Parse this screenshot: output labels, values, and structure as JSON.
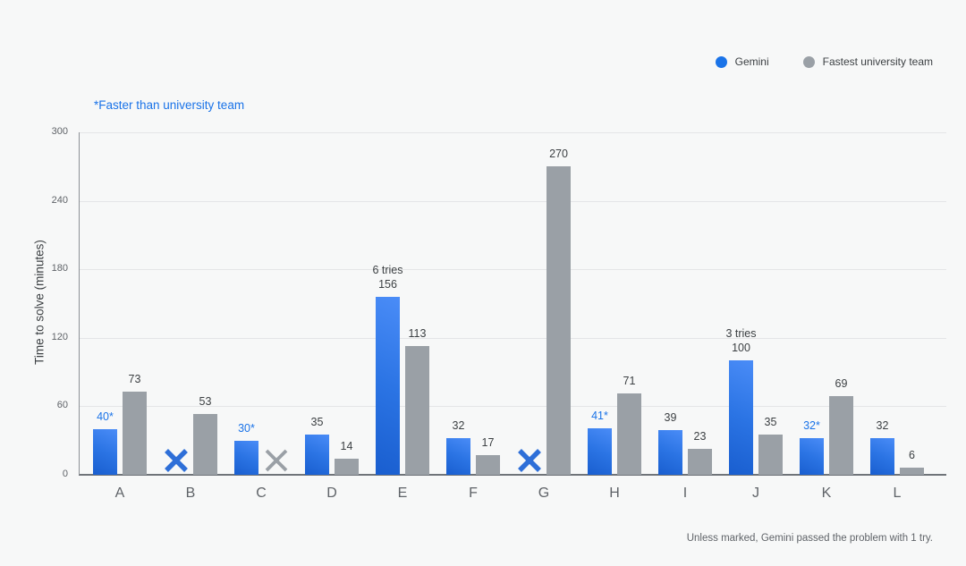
{
  "note": "*Faster than university team",
  "footnote": "Unless marked, Gemini passed the problem with 1 try.",
  "legend": {
    "items": [
      {
        "label": "Gemini",
        "color": "#1a73e8"
      },
      {
        "label": "Fastest university team",
        "color": "#9aa0a6"
      }
    ]
  },
  "chart_data": {
    "type": "bar",
    "title": "",
    "xlabel": "",
    "ylabel": "Time to solve (minutes)",
    "ylim": [
      0,
      300
    ],
    "yticks": [
      0,
      60,
      120,
      180,
      240,
      300
    ],
    "grid": true,
    "legend_position": "top-right",
    "categories": [
      "A",
      "B",
      "C",
      "D",
      "E",
      "F",
      "G",
      "H",
      "I",
      "J",
      "K",
      "L"
    ],
    "series": [
      {
        "name": "Gemini",
        "color": "#1a73e8",
        "values": [
          40,
          null,
          30,
          35,
          156,
          32,
          null,
          41,
          39,
          100,
          32,
          32
        ],
        "value_labels": [
          "40*",
          null,
          "30*",
          "35",
          "156",
          "32",
          null,
          "41*",
          "39",
          "100",
          "32*",
          "32"
        ],
        "failed": [
          false,
          true,
          false,
          false,
          false,
          false,
          true,
          false,
          false,
          false,
          false,
          false
        ],
        "failed_marker": "X",
        "annotations": [
          null,
          null,
          null,
          null,
          "6 tries",
          null,
          null,
          null,
          null,
          "3 tries",
          null,
          null
        ]
      },
      {
        "name": "Fastest university team",
        "color": "#9aa0a6",
        "values": [
          73,
          53,
          null,
          14,
          113,
          17,
          270,
          71,
          23,
          35,
          69,
          6
        ],
        "value_labels": [
          "73",
          "53",
          null,
          "14",
          "113",
          "17",
          "270",
          "71",
          "23",
          "35",
          "69",
          "6"
        ],
        "failed": [
          false,
          false,
          true,
          false,
          false,
          false,
          false,
          false,
          false,
          false,
          false,
          false
        ],
        "failed_marker": "X",
        "annotations": [
          null,
          null,
          null,
          null,
          null,
          null,
          null,
          null,
          null,
          null,
          null,
          null
        ]
      }
    ]
  },
  "colors": {
    "gemini_accent": "#1a73e8",
    "gemini_gradient_top": "#4a8cf7",
    "gemini_gradient_bottom": "#195ecf",
    "team_gray": "#9aa0a6",
    "text_dark": "#3c4043",
    "text_muted": "#5f6368",
    "gridline": "#e4e5e7",
    "axis_line": "#6f7479",
    "background": "#f7f8f8",
    "failed_x_gemini": "#2e6fd8",
    "failed_x_team": "#9aa0a6"
  }
}
